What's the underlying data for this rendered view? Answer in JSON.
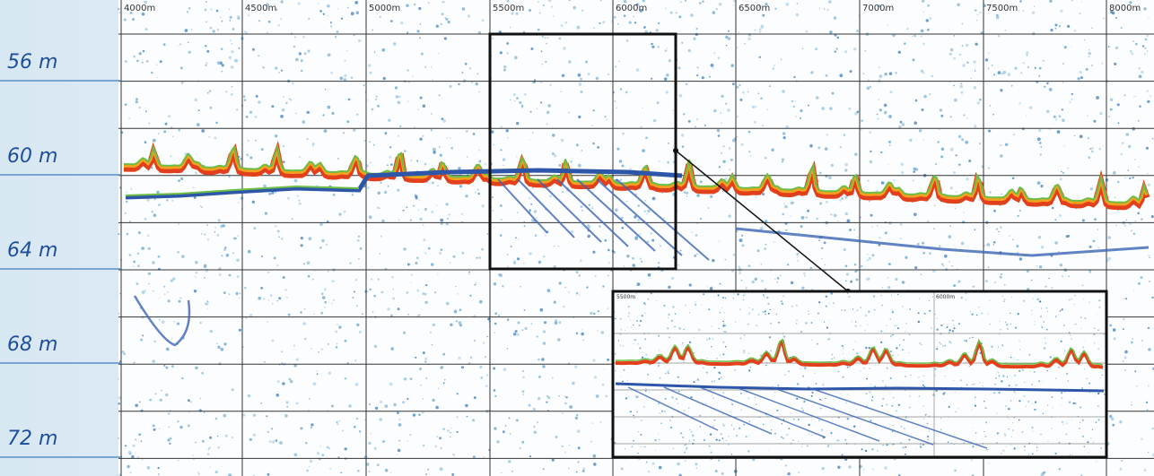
{
  "depth_labels": [
    "56 m",
    "60 m",
    "64 m",
    "68 m",
    "72 m"
  ],
  "distance_labels": [
    "4000m",
    "4500m",
    "5000m",
    "5500m",
    "6000m",
    "6500m",
    "7000m",
    "7500m",
    "8000m"
  ],
  "inset": {
    "distance_labels": [
      "5500m",
      "6000m"
    ]
  }
}
